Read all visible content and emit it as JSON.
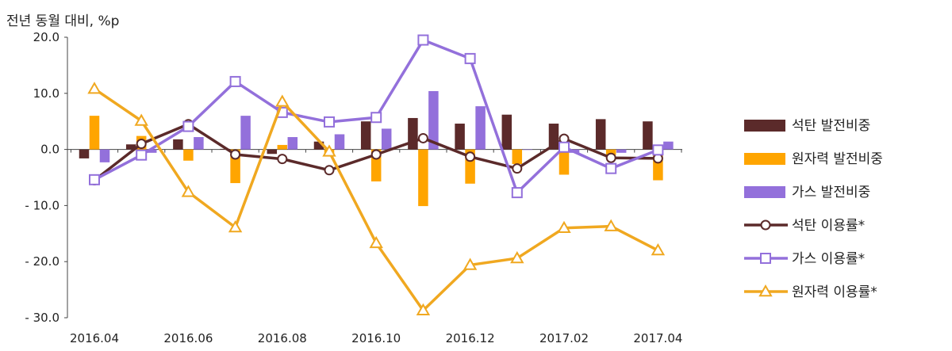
{
  "chart_data": {
    "type": "bar+line",
    "unit_label": "전년 동월 대비, %p",
    "categories": [
      "2016.04",
      "2016.05",
      "2016.06",
      "2016.07",
      "2016.08",
      "2016.09",
      "2016.10",
      "2016.11",
      "2016.12",
      "2017.01",
      "2017.02",
      "2017.03",
      "2017.04"
    ],
    "x_tick_labels": [
      "2016.04",
      "2016.06",
      "2016.08",
      "2016.10",
      "2016.12",
      "2017.02",
      "2017.04"
    ],
    "y_tick_labels": [
      "20.0",
      "10.0",
      "0.0",
      "- 10.0",
      "- 20.0",
      "- 30.0"
    ],
    "ylim": [
      -30,
      20
    ],
    "bar_series": [
      {
        "name": "석탄 발전비중",
        "color": "#5b2a2a",
        "values": [
          -1.6,
          0.9,
          1.8,
          0.1,
          -0.8,
          1.4,
          5.0,
          5.6,
          4.6,
          6.2,
          4.6,
          5.4,
          5.0
        ]
      },
      {
        "name": "원자력 발전비중",
        "color": "#ffa500",
        "values": [
          6.0,
          2.4,
          -2.0,
          -6.0,
          0.8,
          -1.0,
          -5.7,
          -10.1,
          -6.1,
          -2.6,
          -4.5,
          -1.0,
          -5.5
        ]
      },
      {
        "name": "가스 발전비중",
        "color": "#9370db",
        "values": [
          -2.3,
          -0.6,
          2.2,
          6.0,
          2.2,
          2.7,
          3.7,
          10.4,
          7.7,
          0.0,
          -0.6,
          -0.6,
          1.4
        ]
      }
    ],
    "line_series": [
      {
        "name": "석탄 이용률*",
        "color": "#5b2a2a",
        "marker": "circle",
        "values": [
          -5.5,
          1.0,
          4.5,
          -0.9,
          -1.7,
          -3.7,
          -0.9,
          2.0,
          -1.3,
          -3.4,
          1.9,
          -1.5,
          -1.6
        ]
      },
      {
        "name": "가스 이용률*",
        "color": "#9370db",
        "marker": "square",
        "values": [
          -5.4,
          -1.0,
          4.1,
          12.1,
          6.6,
          4.9,
          5.7,
          19.5,
          16.2,
          -7.7,
          0.4,
          -3.4,
          -0.1
        ]
      },
      {
        "name": "원자력 이용률*",
        "color": "#f0a820",
        "marker": "triangle",
        "values": [
          10.8,
          5.1,
          -7.6,
          -13.9,
          8.5,
          -0.4,
          -16.7,
          -28.7,
          -20.6,
          -19.4,
          -14.0,
          -13.7,
          -18.0
        ]
      }
    ],
    "legend_position": "right",
    "grid": false
  }
}
